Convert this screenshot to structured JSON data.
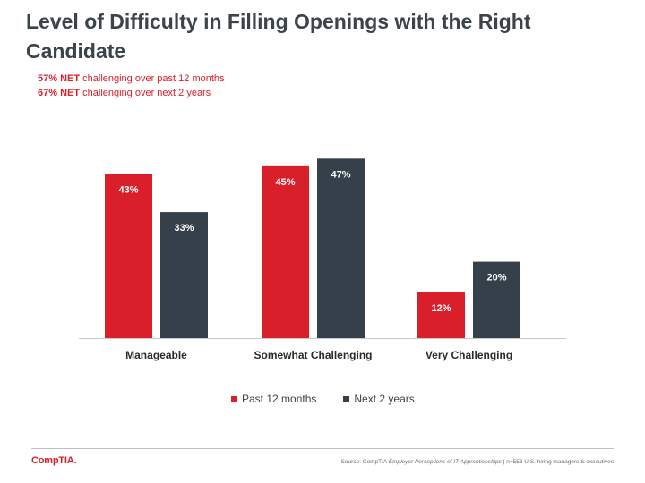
{
  "header": {
    "title": "Level of Difficulty in Filling Openings with the Right Candidate"
  },
  "notes": [
    {
      "bold": "57% NET",
      "text": " challenging over past 12 months"
    },
    {
      "bold": "67% NET",
      "text": " challenging over next 2 years"
    }
  ],
  "chart_data": {
    "type": "bar",
    "title": "Level of Difficulty in Filling Openings with the Right Candidate",
    "categories": [
      "Manageable",
      "Somewhat Challenging",
      "Very Challenging"
    ],
    "series": [
      {
        "name": "Past 12 months",
        "values": [
          43,
          45,
          12
        ],
        "labels": [
          "43%",
          "45%",
          "12%"
        ],
        "color": "#d9202a"
      },
      {
        "name": "Next 2 years",
        "values": [
          33,
          47,
          20
        ],
        "labels": [
          "33%",
          "47%",
          "20%"
        ],
        "color": "#36404a"
      }
    ],
    "ylim": [
      0,
      50
    ],
    "grid": false,
    "legend_position": "bottom"
  },
  "footer": {
    "logo_text": "CompTIA.",
    "source_prefix": "Source: CompTIA ",
    "source_italic": "Employer Perceptions of IT Apprenticeships",
    "source_suffix": " | n=553 U.S. hiring managers & executives"
  }
}
